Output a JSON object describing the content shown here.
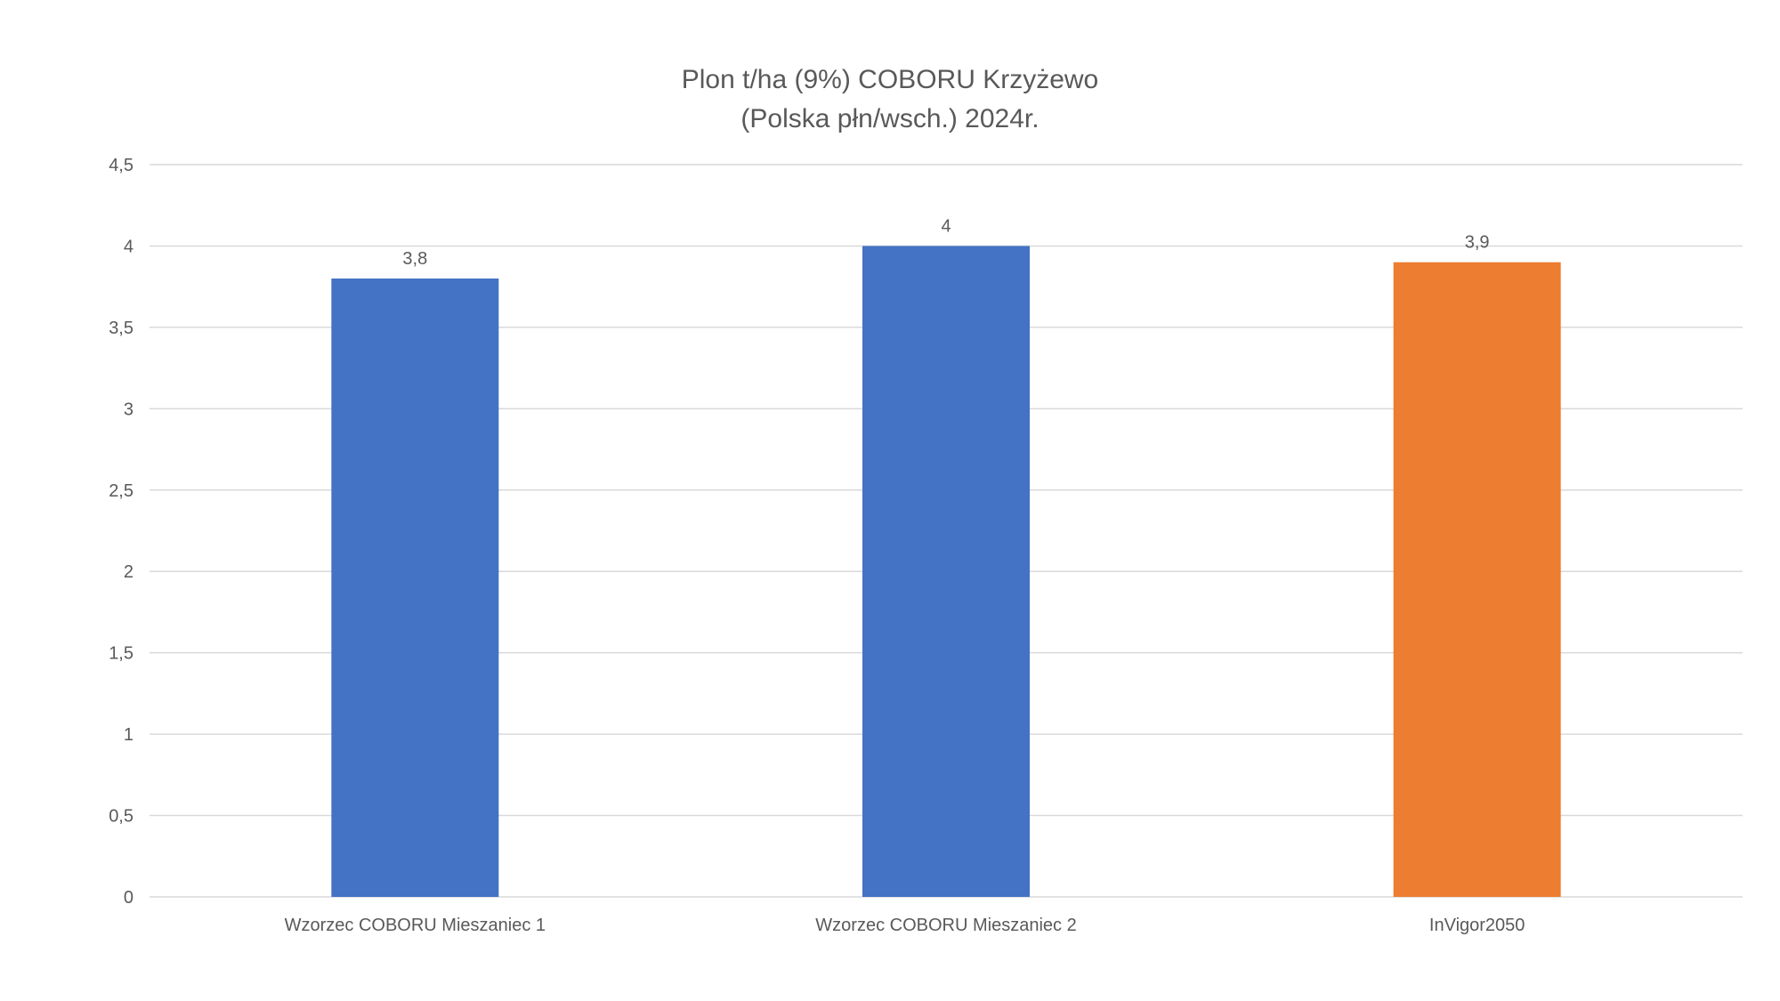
{
  "chart_data": {
    "type": "bar",
    "title_line1": "Plon t/ha (9%) COBORU Krzyżewo",
    "title_line2": "(Polska płn/wsch.) 2024r.",
    "categories": [
      "Wzorzec COBORU Mieszaniec 1",
      "Wzorzec COBORU Mieszaniec 2",
      "InVigor2050"
    ],
    "values": [
      3.8,
      4,
      3.9
    ],
    "value_labels": [
      "3,8",
      "4",
      "3,9"
    ],
    "bar_colors": [
      "#4472C4",
      "#4472C4",
      "#ED7D31"
    ],
    "ylim": [
      0,
      4.5
    ],
    "yticks": [
      0,
      0.5,
      1,
      1.5,
      2,
      2.5,
      3,
      3.5,
      4,
      4.5
    ],
    "ytick_labels": [
      "0",
      "0,5",
      "1",
      "1,5",
      "2",
      "2,5",
      "3",
      "3,5",
      "4",
      "4,5"
    ],
    "grid": true,
    "legend": "none",
    "xlabel": "",
    "ylabel": ""
  },
  "colors": {
    "gridline": "#D9D9D9",
    "text": "#595959"
  }
}
